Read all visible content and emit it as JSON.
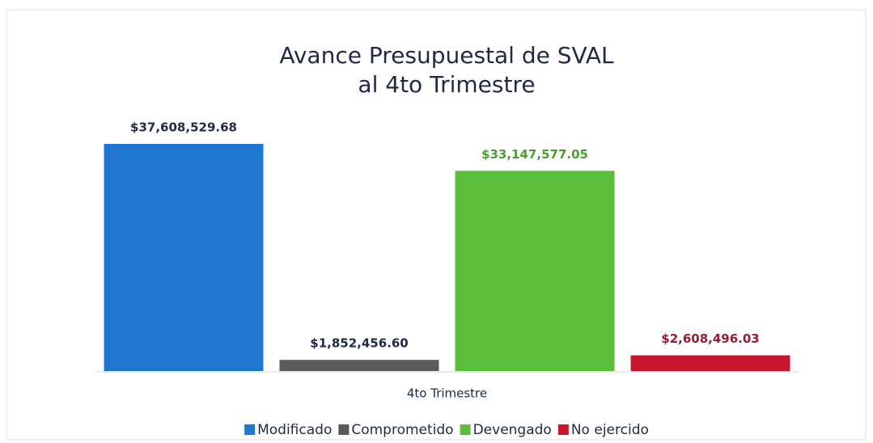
{
  "chart_data": {
    "type": "bar",
    "title": [
      "Avance Presupuestal de SVAL",
      "al 4to Trimestre"
    ],
    "categories": [
      "4to Trimestre"
    ],
    "series": [
      {
        "name": "Modificado",
        "color": "#1f77d0",
        "label_color": "#1f2a44",
        "values": [
          37608529.68
        ],
        "value_labels": [
          "$37,608,529.68"
        ]
      },
      {
        "name": "Comprometido",
        "color": "#5a5a5a",
        "label_color": "#1f2a44",
        "values": [
          1852456.6
        ],
        "value_labels": [
          "$1,852,456.60"
        ]
      },
      {
        "name": "Devengado",
        "color": "#5cbf3c",
        "label_color": "#4a9e2c",
        "values": [
          33147577.05
        ],
        "value_labels": [
          "$33,147,577.05"
        ]
      },
      {
        "name": "No ejercido",
        "color": "#c8162c",
        "label_color": "#9b1b30",
        "values": [
          2608496.03
        ],
        "value_labels": [
          "$2,608,496.03"
        ]
      }
    ]
  }
}
